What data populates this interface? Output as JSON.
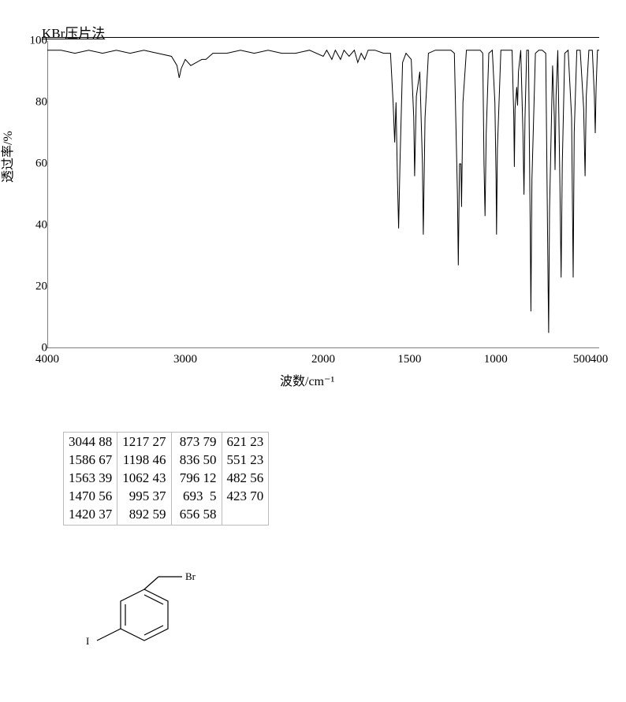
{
  "chart": {
    "type": "line",
    "title": "KBr压片法",
    "title_fontsize": 17,
    "ylabel": "透过率/%",
    "xlabel": "波数/cm⁻¹",
    "label_fontsize": 16,
    "tick_fontsize": 15,
    "xlim": [
      4000,
      400
    ],
    "ylim": [
      0,
      100
    ],
    "yticks": [
      0,
      20,
      40,
      60,
      80,
      100
    ],
    "ytick_labels": [
      "0",
      "20",
      "40",
      "60",
      "80",
      "100"
    ],
    "xticks": [
      4000,
      3000,
      2000,
      1500,
      1000,
      500,
      400
    ],
    "xtick_labels": [
      "4000",
      "3000",
      "2000",
      "1500",
      "1000",
      "500",
      "400"
    ],
    "line_color": "#000000",
    "line_width": 1,
    "background_color": "#ffffff",
    "axis_color": "#000000",
    "spectrum": [
      [
        4000,
        97
      ],
      [
        3900,
        97
      ],
      [
        3800,
        96
      ],
      [
        3700,
        97
      ],
      [
        3600,
        96
      ],
      [
        3500,
        97
      ],
      [
        3400,
        96
      ],
      [
        3300,
        97
      ],
      [
        3200,
        96
      ],
      [
        3100,
        95
      ],
      [
        3060,
        92
      ],
      [
        3044,
        88
      ],
      [
        3030,
        91
      ],
      [
        3000,
        94
      ],
      [
        2960,
        92
      ],
      [
        2920,
        93
      ],
      [
        2880,
        94
      ],
      [
        2850,
        94
      ],
      [
        2800,
        96
      ],
      [
        2700,
        96
      ],
      [
        2600,
        97
      ],
      [
        2500,
        96
      ],
      [
        2400,
        97
      ],
      [
        2300,
        96
      ],
      [
        2200,
        96
      ],
      [
        2100,
        97
      ],
      [
        2000,
        95
      ],
      [
        1980,
        97
      ],
      [
        1950,
        94
      ],
      [
        1930,
        97
      ],
      [
        1900,
        94
      ],
      [
        1880,
        97
      ],
      [
        1850,
        95
      ],
      [
        1820,
        97
      ],
      [
        1800,
        93
      ],
      [
        1780,
        96
      ],
      [
        1760,
        94
      ],
      [
        1740,
        97
      ],
      [
        1700,
        97
      ],
      [
        1650,
        96
      ],
      [
        1610,
        96
      ],
      [
        1595,
        80
      ],
      [
        1586,
        67
      ],
      [
        1578,
        80
      ],
      [
        1570,
        55
      ],
      [
        1563,
        39
      ],
      [
        1555,
        60
      ],
      [
        1540,
        93
      ],
      [
        1520,
        96
      ],
      [
        1490,
        94
      ],
      [
        1475,
        75
      ],
      [
        1470,
        56
      ],
      [
        1460,
        82
      ],
      [
        1440,
        90
      ],
      [
        1425,
        60
      ],
      [
        1420,
        37
      ],
      [
        1410,
        75
      ],
      [
        1390,
        96
      ],
      [
        1350,
        97
      ],
      [
        1320,
        97
      ],
      [
        1300,
        97
      ],
      [
        1260,
        97
      ],
      [
        1240,
        96
      ],
      [
        1222,
        50
      ],
      [
        1217,
        27
      ],
      [
        1210,
        60
      ],
      [
        1202,
        60
      ],
      [
        1198,
        46
      ],
      [
        1190,
        80
      ],
      [
        1170,
        97
      ],
      [
        1150,
        97
      ],
      [
        1120,
        97
      ],
      [
        1090,
        97
      ],
      [
        1075,
        96
      ],
      [
        1068,
        60
      ],
      [
        1062,
        43
      ],
      [
        1055,
        70
      ],
      [
        1040,
        96
      ],
      [
        1020,
        97
      ],
      [
        1005,
        80
      ],
      [
        998,
        55
      ],
      [
        995,
        37
      ],
      [
        990,
        65
      ],
      [
        970,
        97
      ],
      [
        940,
        97
      ],
      [
        920,
        97
      ],
      [
        905,
        97
      ],
      [
        895,
        75
      ],
      [
        892,
        59
      ],
      [
        888,
        78
      ],
      [
        878,
        85
      ],
      [
        873,
        79
      ],
      [
        868,
        90
      ],
      [
        855,
        97
      ],
      [
        842,
        70
      ],
      [
        836,
        50
      ],
      [
        830,
        75
      ],
      [
        820,
        97
      ],
      [
        810,
        97
      ],
      [
        800,
        40
      ],
      [
        796,
        12
      ],
      [
        790,
        55
      ],
      [
        770,
        96
      ],
      [
        750,
        97
      ],
      [
        730,
        97
      ],
      [
        710,
        96
      ],
      [
        697,
        25
      ],
      [
        693,
        5
      ],
      [
        688,
        45
      ],
      [
        670,
        92
      ],
      [
        660,
        75
      ],
      [
        656,
        58
      ],
      [
        650,
        82
      ],
      [
        640,
        97
      ],
      [
        628,
        55
      ],
      [
        621,
        23
      ],
      [
        614,
        60
      ],
      [
        600,
        96
      ],
      [
        580,
        97
      ],
      [
        560,
        75
      ],
      [
        551,
        23
      ],
      [
        545,
        70
      ],
      [
        530,
        97
      ],
      [
        510,
        97
      ],
      [
        490,
        78
      ],
      [
        482,
        56
      ],
      [
        475,
        82
      ],
      [
        460,
        97
      ],
      [
        440,
        97
      ],
      [
        428,
        82
      ],
      [
        423,
        70
      ],
      [
        418,
        85
      ],
      [
        410,
        97
      ],
      [
        400,
        97
      ]
    ]
  },
  "peaks_table": {
    "columns": 4,
    "rows": 5,
    "cells": [
      [
        "3044 88",
        "1217 27",
        " 873 79",
        "621 23"
      ],
      [
        "1586 67",
        "1198 46",
        " 836 50",
        "551 23"
      ],
      [
        "1563 39",
        "1062 43",
        " 796 12",
        "482 56"
      ],
      [
        "1470 56",
        " 995 37",
        " 693  5",
        "423 70"
      ],
      [
        "1420 37",
        " 892 59",
        " 656 58",
        ""
      ]
    ],
    "border_color": "#bbbbbb",
    "font_family": "Times New Roman",
    "font_size": 17
  },
  "molecule": {
    "type": "chemical-structure",
    "description": "1-(bromomethyl)-3-iodobenzene",
    "labels": {
      "br": "Br",
      "i": "I"
    },
    "line_color": "#000000",
    "text_color": "#000000",
    "font_size": 13
  }
}
